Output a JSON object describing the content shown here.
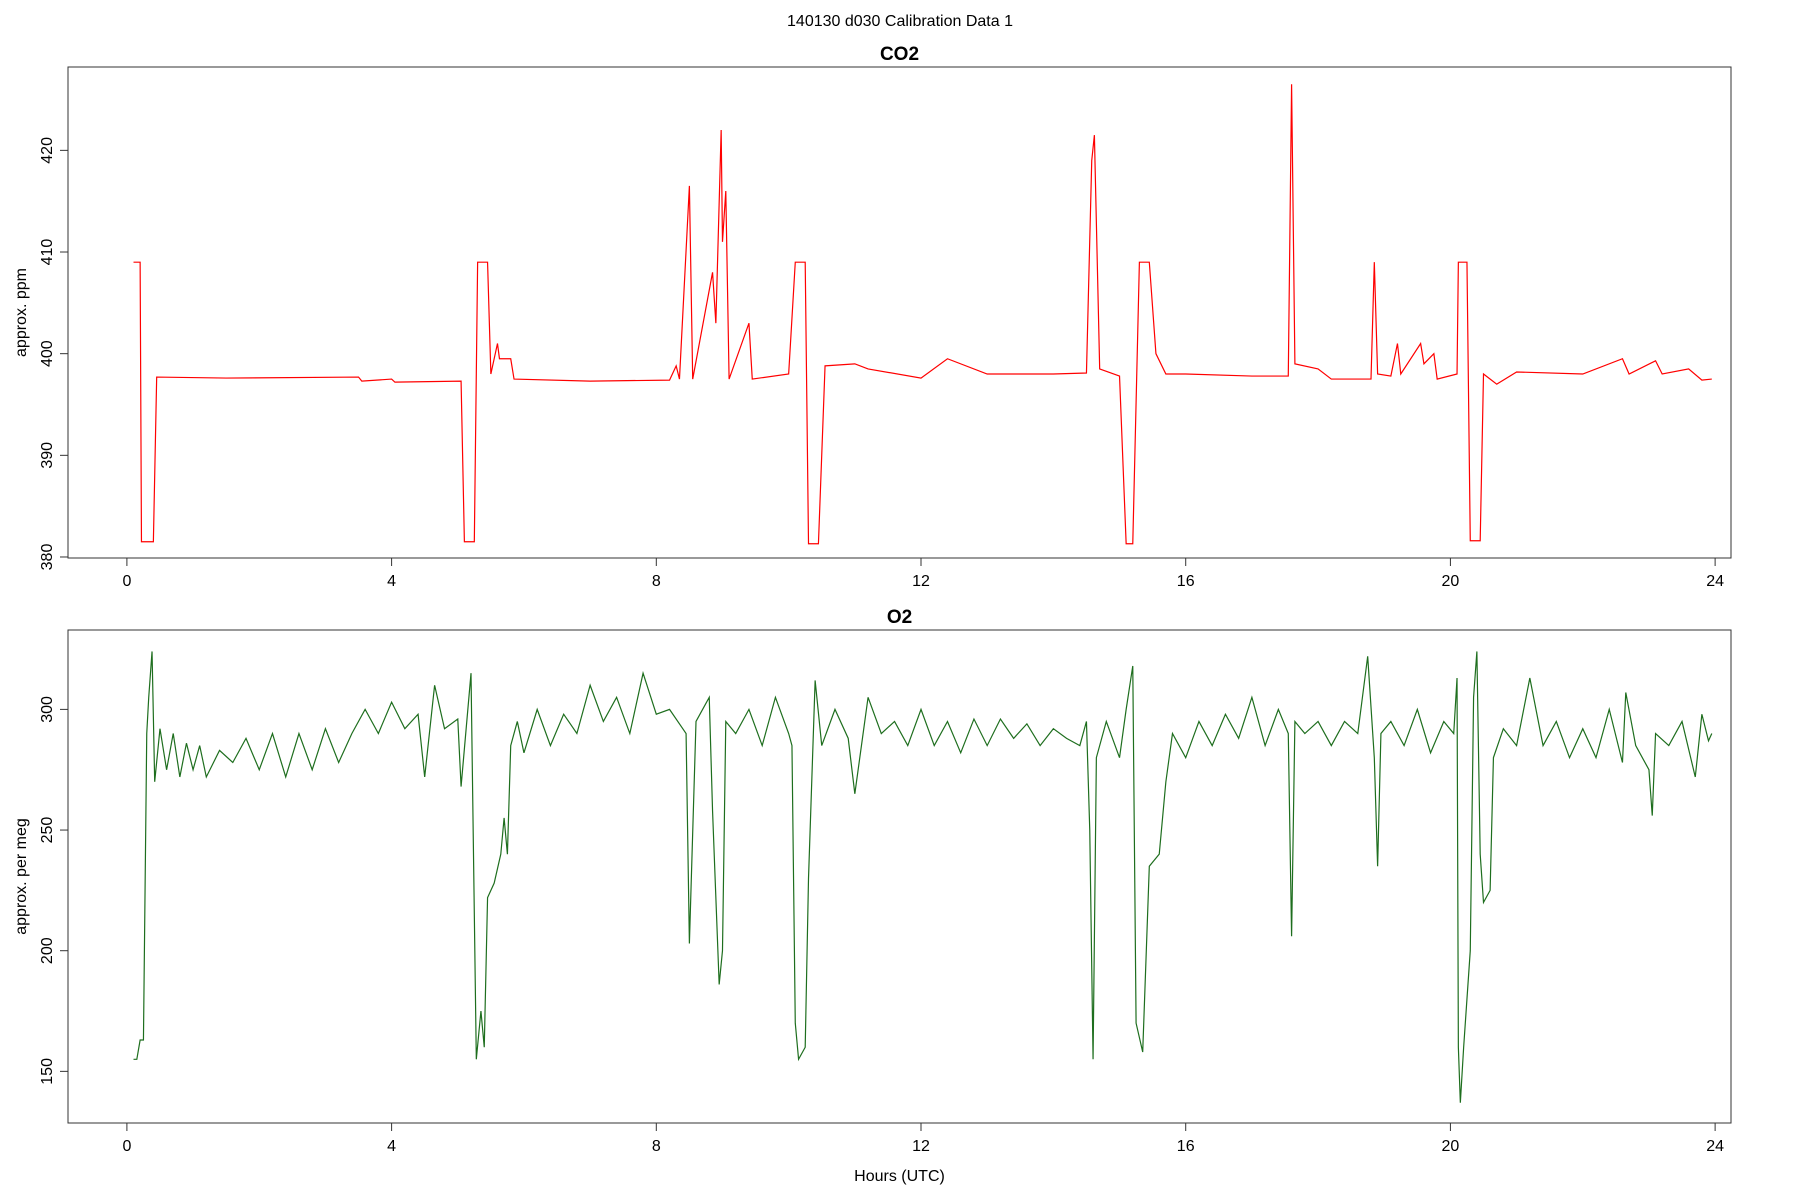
{
  "title": "140130   d030   Calibration Data 1",
  "chart_data": [
    {
      "type": "line",
      "title": "CO2",
      "ylabel": "approx. ppm",
      "color": "#ff0000",
      "xlim": [
        -0.89,
        24.24
      ],
      "ylim": [
        379.9,
        428.2
      ],
      "xticks": [
        0,
        4,
        8,
        12,
        16,
        20,
        24
      ],
      "yticks": [
        380,
        390,
        400,
        410,
        420
      ],
      "x": [
        0.1,
        0.2,
        0.22,
        0.4,
        0.45,
        1.5,
        3.5,
        3.55,
        4.0,
        4.05,
        5.05,
        5.1,
        5.25,
        5.3,
        5.45,
        5.5,
        5.6,
        5.63,
        5.7,
        5.8,
        5.85,
        7.0,
        8.2,
        8.3,
        8.35,
        8.5,
        8.55,
        8.85,
        8.9,
        8.98,
        9.0,
        9.05,
        9.1,
        9.4,
        9.45,
        10.0,
        10.1,
        10.25,
        10.3,
        10.45,
        10.55,
        11.0,
        11.2,
        12.0,
        12.4,
        13.0,
        14.0,
        14.5,
        14.58,
        14.62,
        14.7,
        15.0,
        15.1,
        15.2,
        15.3,
        15.45,
        15.55,
        15.7,
        16.0,
        17.0,
        17.55,
        17.6,
        17.65,
        18.0,
        18.2,
        18.8,
        18.85,
        18.9,
        19.1,
        19.2,
        19.25,
        19.55,
        19.6,
        19.75,
        19.8,
        20.1,
        20.12,
        20.25,
        20.3,
        20.45,
        20.5,
        20.7,
        21.0,
        22.0,
        22.6,
        22.7,
        23.1,
        23.2,
        23.6,
        23.8,
        23.95
      ],
      "values": [
        409,
        409,
        381.5,
        381.5,
        397.7,
        397.6,
        397.7,
        397.3,
        397.5,
        397.2,
        397.3,
        381.5,
        381.5,
        409,
        409,
        398,
        401,
        399.5,
        399.5,
        399.5,
        397.5,
        397.3,
        397.4,
        398.8,
        397.5,
        416.5,
        397.5,
        408,
        403,
        422,
        411,
        416,
        397.5,
        403,
        397.5,
        398,
        409,
        409,
        381.3,
        381.3,
        398.8,
        399,
        398.5,
        397.6,
        399.5,
        398,
        398,
        398.1,
        419,
        421.5,
        398.5,
        397.8,
        381.3,
        381.3,
        409,
        409,
        400,
        398,
        398,
        397.8,
        397.8,
        426.5,
        399,
        398.5,
        397.5,
        397.5,
        409,
        398,
        397.8,
        401,
        398,
        401,
        399,
        400,
        397.5,
        398,
        409,
        409,
        381.6,
        381.6,
        398,
        397,
        398.2,
        398,
        399.5,
        398,
        399.3,
        398,
        398.5,
        397.4,
        397.5
      ]
    },
    {
      "type": "line",
      "title": "O2",
      "ylabel": "approx. per meg",
      "xlabel": "Hours (UTC)",
      "color": "#1e6e1e",
      "xlim": [
        -0.89,
        24.24
      ],
      "ylim": [
        128.6,
        332.9
      ],
      "xticks": [
        0,
        4,
        8,
        12,
        16,
        20,
        24
      ],
      "yticks": [
        150,
        200,
        250,
        300
      ],
      "x": [
        0.1,
        0.15,
        0.2,
        0.25,
        0.3,
        0.33,
        0.38,
        0.42,
        0.5,
        0.6,
        0.7,
        0.8,
        0.9,
        1.0,
        1.1,
        1.2,
        1.4,
        1.6,
        1.8,
        2.0,
        2.2,
        2.4,
        2.6,
        2.8,
        3.0,
        3.2,
        3.4,
        3.6,
        3.8,
        4.0,
        4.2,
        4.4,
        4.5,
        4.65,
        4.8,
        5.0,
        5.05,
        5.2,
        5.28,
        5.35,
        5.4,
        5.45,
        5.55,
        5.65,
        5.7,
        5.75,
        5.8,
        5.9,
        6.0,
        6.2,
        6.4,
        6.6,
        6.8,
        7.0,
        7.2,
        7.4,
        7.6,
        7.8,
        8.0,
        8.2,
        8.4,
        8.45,
        8.5,
        8.6,
        8.8,
        8.85,
        8.95,
        9.0,
        9.05,
        9.2,
        9.4,
        9.6,
        9.8,
        10.0,
        10.05,
        10.1,
        10.15,
        10.25,
        10.3,
        10.4,
        10.5,
        10.7,
        10.9,
        11.0,
        11.2,
        11.4,
        11.6,
        11.8,
        12.0,
        12.2,
        12.4,
        12.6,
        12.8,
        13.0,
        13.2,
        13.4,
        13.6,
        13.8,
        14.0,
        14.2,
        14.4,
        14.5,
        14.55,
        14.6,
        14.65,
        14.8,
        15.0,
        15.1,
        15.2,
        15.25,
        15.35,
        15.45,
        15.6,
        15.7,
        15.8,
        16.0,
        16.2,
        16.4,
        16.6,
        16.8,
        17.0,
        17.2,
        17.4,
        17.55,
        17.6,
        17.65,
        17.8,
        18.0,
        18.2,
        18.4,
        18.6,
        18.75,
        18.85,
        18.9,
        18.95,
        19.1,
        19.3,
        19.5,
        19.7,
        19.9,
        20.05,
        20.1,
        20.12,
        20.15,
        20.2,
        20.3,
        20.35,
        20.4,
        20.45,
        20.5,
        20.6,
        20.65,
        20.8,
        21.0,
        21.2,
        21.4,
        21.6,
        21.8,
        22.0,
        22.2,
        22.4,
        22.6,
        22.65,
        22.8,
        23.0,
        23.05,
        23.1,
        23.3,
        23.5,
        23.7,
        23.8,
        23.9,
        23.95
      ],
      "values": [
        155,
        155,
        163,
        163,
        290,
        305,
        324,
        270,
        292,
        275,
        290,
        272,
        286,
        275,
        285,
        272,
        283,
        278,
        288,
        275,
        290,
        272,
        290,
        275,
        292,
        278,
        290,
        300,
        290,
        303,
        292,
        298,
        272,
        310,
        292,
        296,
        268,
        315,
        155,
        175,
        160,
        222,
        228,
        240,
        255,
        240,
        285,
        295,
        282,
        300,
        285,
        298,
        290,
        310,
        295,
        305,
        290,
        315,
        298,
        300,
        292,
        290,
        203,
        295,
        305,
        258,
        186,
        200,
        295,
        290,
        300,
        285,
        305,
        290,
        285,
        170,
        155,
        160,
        230,
        312,
        285,
        300,
        288,
        265,
        305,
        290,
        295,
        285,
        300,
        285,
        295,
        282,
        296,
        285,
        296,
        288,
        294,
        285,
        292,
        288,
        285,
        295,
        250,
        155,
        280,
        295,
        280,
        300,
        318,
        170,
        158,
        235,
        240,
        270,
        290,
        280,
        295,
        285,
        298,
        288,
        305,
        285,
        300,
        290,
        206,
        295,
        290,
        295,
        285,
        295,
        290,
        322,
        280,
        235,
        290,
        295,
        285,
        300,
        282,
        295,
        290,
        313,
        160,
        137,
        160,
        200,
        305,
        324,
        240,
        220,
        225,
        280,
        292,
        285,
        313,
        285,
        295,
        280,
        292,
        280,
        300,
        278,
        307,
        285,
        275,
        256,
        290,
        285,
        295,
        272,
        298,
        287,
        290
      ]
    }
  ]
}
